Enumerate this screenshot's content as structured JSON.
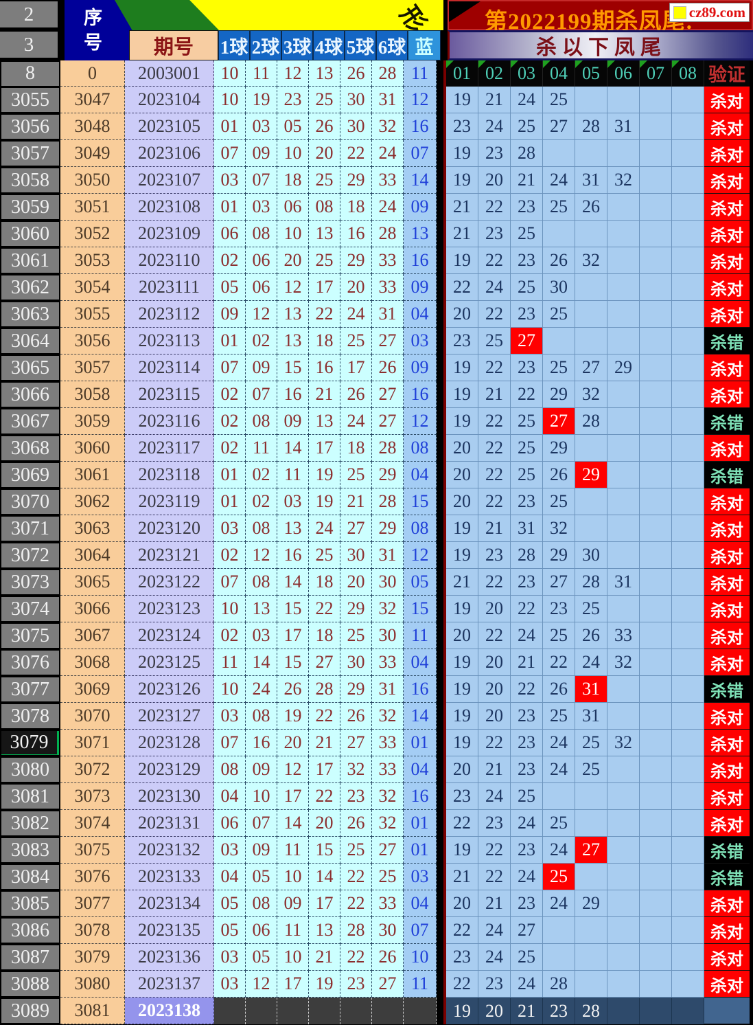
{
  "header": {
    "banner_title": "第2022199期杀凤尾:",
    "logo_text": "cz89.com",
    "sub_title": "杀以下凤尾",
    "corner_glyph": "形",
    "top_row_labels": [
      "2",
      "3"
    ]
  },
  "left_header": {
    "seq": "序号",
    "period": "期号",
    "balls": [
      "1球",
      "2球",
      "3球",
      "4球",
      "5球",
      "6球"
    ],
    "blue": "蓝"
  },
  "kill_header": {
    "cols": [
      "01",
      "02",
      "03",
      "04",
      "05",
      "06",
      "07",
      "08"
    ],
    "verify": "验证"
  },
  "status_labels": {
    "correct": "杀对",
    "wrong": "杀错"
  },
  "colors": {
    "correct_bg": "#ff0000",
    "wrong_bg": "#000000",
    "wrong_text": "#7fe3b8",
    "hot_cell_bg": "#ff0000",
    "banner_bg": "#9e0000",
    "banner_text": "#ff9900",
    "selected_row_accent": "#00b050"
  },
  "rows": [
    {
      "rlabel": "8",
      "seq": "0",
      "period": "2003001",
      "balls": [
        "10",
        "11",
        "12",
        "13",
        "26",
        "28"
      ],
      "blue": "11",
      "header_row": true
    },
    {
      "rlabel": "3055",
      "seq": "3047",
      "period": "2023104",
      "balls": [
        "10",
        "19",
        "23",
        "25",
        "30",
        "31"
      ],
      "blue": "12",
      "kills": [
        "19",
        "21",
        "24",
        "25"
      ],
      "hot": -1,
      "status": "C"
    },
    {
      "rlabel": "3056",
      "seq": "3048",
      "period": "2023105",
      "balls": [
        "01",
        "03",
        "05",
        "26",
        "30",
        "32"
      ],
      "blue": "16",
      "kills": [
        "23",
        "24",
        "25",
        "27",
        "28",
        "31"
      ],
      "hot": -1,
      "status": "C"
    },
    {
      "rlabel": "3057",
      "seq": "3049",
      "period": "2023106",
      "balls": [
        "07",
        "09",
        "10",
        "20",
        "22",
        "24"
      ],
      "blue": "07",
      "kills": [
        "19",
        "23",
        "28"
      ],
      "hot": -1,
      "status": "C"
    },
    {
      "rlabel": "3058",
      "seq": "3050",
      "period": "2023107",
      "balls": [
        "03",
        "07",
        "18",
        "25",
        "29",
        "33"
      ],
      "blue": "14",
      "kills": [
        "19",
        "20",
        "21",
        "24",
        "31",
        "32"
      ],
      "hot": -1,
      "status": "C"
    },
    {
      "rlabel": "3059",
      "seq": "3051",
      "period": "2023108",
      "balls": [
        "01",
        "03",
        "06",
        "08",
        "18",
        "24"
      ],
      "blue": "09",
      "kills": [
        "21",
        "22",
        "23",
        "25",
        "26"
      ],
      "hot": -1,
      "status": "C"
    },
    {
      "rlabel": "3060",
      "seq": "3052",
      "period": "2023109",
      "balls": [
        "06",
        "08",
        "10",
        "13",
        "16",
        "28"
      ],
      "blue": "13",
      "kills": [
        "21",
        "23",
        "25"
      ],
      "hot": -1,
      "status": "C"
    },
    {
      "rlabel": "3061",
      "seq": "3053",
      "period": "2023110",
      "balls": [
        "02",
        "06",
        "20",
        "25",
        "29",
        "33"
      ],
      "blue": "16",
      "kills": [
        "19",
        "22",
        "23",
        "26",
        "32"
      ],
      "hot": -1,
      "status": "C"
    },
    {
      "rlabel": "3062",
      "seq": "3054",
      "period": "2023111",
      "balls": [
        "05",
        "06",
        "12",
        "17",
        "20",
        "33"
      ],
      "blue": "09",
      "kills": [
        "22",
        "24",
        "25",
        "30"
      ],
      "hot": -1,
      "status": "C"
    },
    {
      "rlabel": "3063",
      "seq": "3055",
      "period": "2023112",
      "balls": [
        "09",
        "12",
        "13",
        "22",
        "24",
        "31"
      ],
      "blue": "04",
      "kills": [
        "20",
        "22",
        "23",
        "25"
      ],
      "hot": -1,
      "status": "C"
    },
    {
      "rlabel": "3064",
      "seq": "3056",
      "period": "2023113",
      "balls": [
        "01",
        "02",
        "13",
        "18",
        "25",
        "27"
      ],
      "blue": "03",
      "kills": [
        "23",
        "25",
        "27"
      ],
      "hot": 2,
      "status": "W"
    },
    {
      "rlabel": "3065",
      "seq": "3057",
      "period": "2023114",
      "balls": [
        "07",
        "09",
        "15",
        "16",
        "17",
        "26"
      ],
      "blue": "09",
      "kills": [
        "19",
        "22",
        "23",
        "25",
        "27",
        "29"
      ],
      "hot": -1,
      "status": "C"
    },
    {
      "rlabel": "3066",
      "seq": "3058",
      "period": "2023115",
      "balls": [
        "02",
        "07",
        "16",
        "21",
        "26",
        "27"
      ],
      "blue": "16",
      "kills": [
        "19",
        "21",
        "22",
        "29",
        "32"
      ],
      "hot": -1,
      "status": "C"
    },
    {
      "rlabel": "3067",
      "seq": "3059",
      "period": "2023116",
      "balls": [
        "02",
        "08",
        "09",
        "13",
        "24",
        "27"
      ],
      "blue": "12",
      "kills": [
        "19",
        "22",
        "25",
        "27",
        "28"
      ],
      "hot": 3,
      "status": "W"
    },
    {
      "rlabel": "3068",
      "seq": "3060",
      "period": "2023117",
      "balls": [
        "02",
        "11",
        "14",
        "17",
        "18",
        "28"
      ],
      "blue": "08",
      "kills": [
        "20",
        "22",
        "25",
        "29"
      ],
      "hot": -1,
      "status": "C"
    },
    {
      "rlabel": "3069",
      "seq": "3061",
      "period": "2023118",
      "balls": [
        "01",
        "02",
        "11",
        "19",
        "25",
        "29"
      ],
      "blue": "04",
      "kills": [
        "20",
        "22",
        "25",
        "26",
        "29"
      ],
      "hot": 4,
      "status": "W"
    },
    {
      "rlabel": "3070",
      "seq": "3062",
      "period": "2023119",
      "balls": [
        "01",
        "02",
        "03",
        "19",
        "21",
        "28"
      ],
      "blue": "15",
      "kills": [
        "20",
        "22",
        "23",
        "25"
      ],
      "hot": -1,
      "status": "C"
    },
    {
      "rlabel": "3071",
      "seq": "3063",
      "period": "2023120",
      "balls": [
        "03",
        "08",
        "13",
        "24",
        "27",
        "29"
      ],
      "blue": "08",
      "kills": [
        "19",
        "21",
        "31",
        "32"
      ],
      "hot": -1,
      "status": "C"
    },
    {
      "rlabel": "3072",
      "seq": "3064",
      "period": "2023121",
      "balls": [
        "02",
        "12",
        "16",
        "25",
        "30",
        "31"
      ],
      "blue": "12",
      "kills": [
        "19",
        "23",
        "28",
        "29",
        "30"
      ],
      "hot": -1,
      "status": "C"
    },
    {
      "rlabel": "3073",
      "seq": "3065",
      "period": "2023122",
      "balls": [
        "07",
        "08",
        "14",
        "18",
        "20",
        "30"
      ],
      "blue": "05",
      "kills": [
        "21",
        "22",
        "23",
        "27",
        "28",
        "31"
      ],
      "hot": -1,
      "status": "C"
    },
    {
      "rlabel": "3074",
      "seq": "3066",
      "period": "2023123",
      "balls": [
        "10",
        "13",
        "15",
        "22",
        "29",
        "32"
      ],
      "blue": "15",
      "kills": [
        "19",
        "20",
        "22",
        "23",
        "25"
      ],
      "hot": -1,
      "status": "C"
    },
    {
      "rlabel": "3075",
      "seq": "3067",
      "period": "2023124",
      "balls": [
        "02",
        "03",
        "17",
        "18",
        "25",
        "30"
      ],
      "blue": "11",
      "kills": [
        "20",
        "22",
        "24",
        "25",
        "26",
        "33"
      ],
      "hot": -1,
      "status": "C"
    },
    {
      "rlabel": "3076",
      "seq": "3068",
      "period": "2023125",
      "balls": [
        "11",
        "14",
        "15",
        "27",
        "30",
        "33"
      ],
      "blue": "04",
      "kills": [
        "19",
        "20",
        "21",
        "22",
        "24",
        "32"
      ],
      "hot": -1,
      "status": "C"
    },
    {
      "rlabel": "3077",
      "seq": "3069",
      "period": "2023126",
      "balls": [
        "10",
        "24",
        "26",
        "28",
        "29",
        "31"
      ],
      "blue": "16",
      "kills": [
        "19",
        "20",
        "22",
        "26",
        "31"
      ],
      "hot": 4,
      "status": "W"
    },
    {
      "rlabel": "3078",
      "seq": "3070",
      "period": "2023127",
      "balls": [
        "03",
        "08",
        "19",
        "22",
        "26",
        "32"
      ],
      "blue": "14",
      "kills": [
        "19",
        "20",
        "23",
        "25",
        "31"
      ],
      "hot": -1,
      "status": "C"
    },
    {
      "rlabel": "3079",
      "seq": "3071",
      "period": "2023128",
      "balls": [
        "07",
        "16",
        "20",
        "21",
        "27",
        "33"
      ],
      "blue": "01",
      "kills": [
        "19",
        "22",
        "23",
        "24",
        "25",
        "32"
      ],
      "hot": -1,
      "status": "C",
      "selected": true
    },
    {
      "rlabel": "3080",
      "seq": "3072",
      "period": "2023129",
      "balls": [
        "08",
        "09",
        "12",
        "17",
        "32",
        "33"
      ],
      "blue": "04",
      "kills": [
        "20",
        "21",
        "23",
        "24",
        "25"
      ],
      "hot": -1,
      "status": "C"
    },
    {
      "rlabel": "3081",
      "seq": "3073",
      "period": "2023130",
      "balls": [
        "04",
        "10",
        "17",
        "22",
        "23",
        "32"
      ],
      "blue": "16",
      "kills": [
        "23",
        "24",
        "25"
      ],
      "hot": -1,
      "status": "C"
    },
    {
      "rlabel": "3082",
      "seq": "3074",
      "period": "2023131",
      "balls": [
        "06",
        "07",
        "14",
        "20",
        "26",
        "32"
      ],
      "blue": "01",
      "kills": [
        "22",
        "23",
        "24",
        "25"
      ],
      "hot": -1,
      "status": "C"
    },
    {
      "rlabel": "3083",
      "seq": "3075",
      "period": "2023132",
      "balls": [
        "03",
        "09",
        "11",
        "15",
        "25",
        "27"
      ],
      "blue": "01",
      "kills": [
        "19",
        "22",
        "23",
        "24",
        "27"
      ],
      "hot": 4,
      "status": "W"
    },
    {
      "rlabel": "3084",
      "seq": "3076",
      "period": "2023133",
      "balls": [
        "04",
        "05",
        "10",
        "14",
        "22",
        "25"
      ],
      "blue": "03",
      "kills": [
        "21",
        "22",
        "24",
        "25"
      ],
      "hot": 3,
      "status": "W"
    },
    {
      "rlabel": "3085",
      "seq": "3077",
      "period": "2023134",
      "balls": [
        "05",
        "08",
        "09",
        "17",
        "22",
        "33"
      ],
      "blue": "04",
      "kills": [
        "20",
        "21",
        "23",
        "24",
        "29"
      ],
      "hot": -1,
      "status": "C"
    },
    {
      "rlabel": "3086",
      "seq": "3078",
      "period": "2023135",
      "balls": [
        "05",
        "06",
        "11",
        "13",
        "28",
        "30"
      ],
      "blue": "07",
      "kills": [
        "22",
        "24",
        "27"
      ],
      "hot": -1,
      "status": "C"
    },
    {
      "rlabel": "3087",
      "seq": "3079",
      "period": "2023136",
      "balls": [
        "03",
        "05",
        "10",
        "21",
        "22",
        "26"
      ],
      "blue": "10",
      "kills": [
        "23",
        "24",
        "25"
      ],
      "hot": -1,
      "status": "C"
    },
    {
      "rlabel": "3088",
      "seq": "3080",
      "period": "2023137",
      "balls": [
        "03",
        "12",
        "17",
        "19",
        "23",
        "27"
      ],
      "blue": "11",
      "kills": [
        "22",
        "23",
        "24",
        "28"
      ],
      "hot": -1,
      "status": "C"
    },
    {
      "rlabel": "3089",
      "seq": "3081",
      "period": "2023138",
      "balls": [],
      "blue": "",
      "kills": [
        "19",
        "20",
        "21",
        "23",
        "28"
      ],
      "hot": -1,
      "status": "",
      "dark": true
    }
  ]
}
